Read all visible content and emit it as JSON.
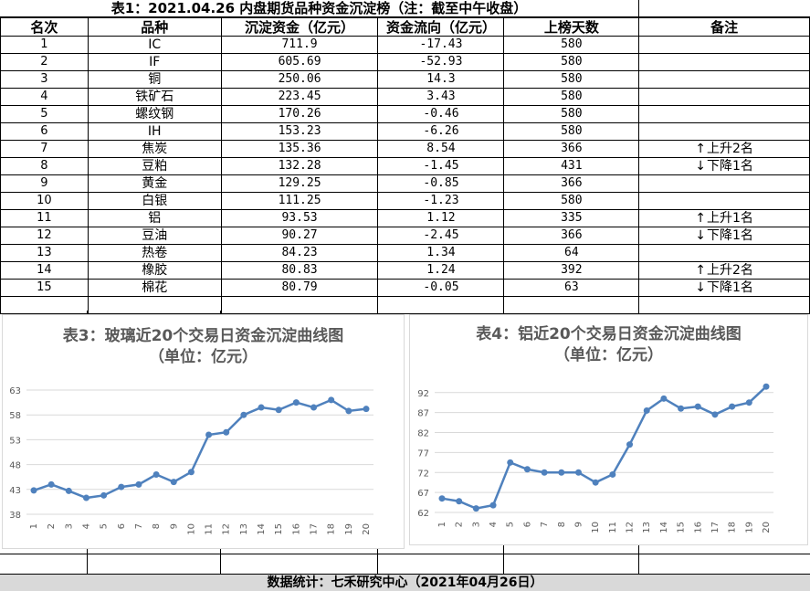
{
  "title": "表1：2021.04.26 内盘期货品种资金沉淀榜（注：截至中午收盘）",
  "headers": [
    "名次",
    "品种",
    "沉淀资金（亿元）",
    "资金流向（亿元）",
    "上榜天数",
    "备注"
  ],
  "rows": [
    {
      "rank": "1",
      "name": "IC",
      "fund": "711.9",
      "flow": "-17.43",
      "days": "580",
      "note": ""
    },
    {
      "rank": "2",
      "name": "IF",
      "fund": "605.69",
      "flow": "-52.93",
      "days": "580",
      "note": ""
    },
    {
      "rank": "3",
      "name": "铜",
      "fund": "250.06",
      "flow": "14.3",
      "days": "580",
      "note": ""
    },
    {
      "rank": "4",
      "name": "铁矿石",
      "fund": "223.45",
      "flow": "3.43",
      "days": "580",
      "note": ""
    },
    {
      "rank": "5",
      "name": "螺纹钢",
      "fund": "170.26",
      "flow": "-0.46",
      "days": "580",
      "note": ""
    },
    {
      "rank": "6",
      "name": "IH",
      "fund": "153.23",
      "flow": "-6.26",
      "days": "580",
      "note": ""
    },
    {
      "rank": "7",
      "name": "焦炭",
      "fund": "135.36",
      "flow": "8.54",
      "days": "366",
      "note": "上升2名",
      "dir": "up"
    },
    {
      "rank": "8",
      "name": "豆粕",
      "fund": "132.28",
      "flow": "-1.45",
      "days": "431",
      "note": "下降1名",
      "dir": "down"
    },
    {
      "rank": "9",
      "name": "黄金",
      "fund": "129.25",
      "flow": "-0.85",
      "days": "366",
      "note": ""
    },
    {
      "rank": "10",
      "name": "白银",
      "fund": "111.25",
      "flow": "-1.23",
      "days": "580",
      "note": ""
    },
    {
      "rank": "11",
      "name": "铝",
      "fund": "93.53",
      "flow": "1.12",
      "days": "335",
      "note": "上升1名",
      "dir": "up"
    },
    {
      "rank": "12",
      "name": "豆油",
      "fund": "90.27",
      "flow": "-2.45",
      "days": "366",
      "note": "下降1名",
      "dir": "down"
    },
    {
      "rank": "13",
      "name": "热卷",
      "fund": "84.23",
      "flow": "1.34",
      "days": "64",
      "note": ""
    },
    {
      "rank": "14",
      "name": "橡胶",
      "fund": "80.83",
      "flow": "1.24",
      "days": "392",
      "note": "上升2名",
      "dir": "up"
    },
    {
      "rank": "15",
      "name": "棉花",
      "fund": "80.79",
      "flow": "-0.05",
      "days": "63",
      "note": "下降1名",
      "dir": "down"
    }
  ],
  "arrows": {
    "up": "↑",
    "down": "↓"
  },
  "footer": "数据统计：七禾研究中心（2021年04月26日）",
  "colors": {
    "line": "#4f81bd",
    "grid": "#d9d9d9",
    "axis_text": "#595959"
  },
  "chart_data": [
    {
      "type": "line",
      "title": "表3：玻璃近20个交易日资金沉淀曲线图",
      "subtitle": "（单位：亿元）",
      "x": [
        1,
        2,
        3,
        4,
        5,
        6,
        7,
        8,
        9,
        10,
        11,
        12,
        13,
        14,
        15,
        16,
        17,
        18,
        19,
        20
      ],
      "y": [
        42.8,
        44.0,
        42.7,
        41.3,
        41.8,
        43.5,
        44.0,
        46.0,
        44.5,
        46.5,
        54.0,
        54.5,
        58.0,
        59.5,
        59.0,
        60.5,
        59.5,
        61.0,
        58.8,
        59.2
      ],
      "yticks": [
        38,
        43,
        48,
        53,
        58,
        63
      ],
      "ylim": [
        38,
        63
      ],
      "grid": true
    },
    {
      "type": "line",
      "title": "表4：铝近20个交易日资金沉淀曲线图",
      "subtitle": "（单位：亿元）",
      "x": [
        1,
        2,
        3,
        4,
        5,
        6,
        7,
        8,
        9,
        10,
        11,
        12,
        13,
        14,
        15,
        16,
        17,
        18,
        19,
        20
      ],
      "y": [
        65.5,
        64.8,
        63.0,
        63.8,
        74.5,
        72.8,
        72.0,
        72.0,
        72.0,
        69.5,
        71.5,
        79.0,
        87.5,
        90.5,
        88.0,
        88.5,
        86.5,
        88.5,
        89.5,
        93.5
      ],
      "yticks": [
        62,
        67,
        72,
        77,
        82,
        87,
        92
      ],
      "ylim": [
        62,
        94
      ],
      "grid": true
    }
  ]
}
